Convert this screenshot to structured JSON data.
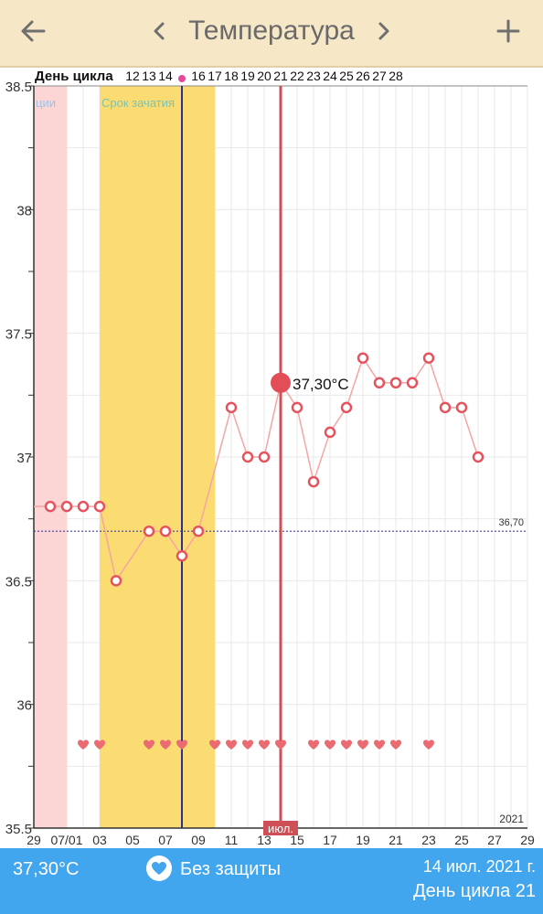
{
  "header": {
    "title": "Температура",
    "back_icon": "arrow-left-icon",
    "prev_icon": "chevron-left-icon",
    "next_icon": "chevron-right-icon",
    "add_icon": "plus-icon"
  },
  "chart_data": {
    "type": "line",
    "cycle_label": "День цикла",
    "cycle_days": [
      {
        "label": "12",
        "x": "2021-07-05"
      },
      {
        "label": "13",
        "x": "2021-07-06"
      },
      {
        "label": "14",
        "x": "2021-07-07"
      },
      {
        "label": "16",
        "x": "2021-07-09"
      },
      {
        "label": "17",
        "x": "2021-07-10"
      },
      {
        "label": "18",
        "x": "2021-07-11"
      },
      {
        "label": "19",
        "x": "2021-07-12"
      },
      {
        "label": "20",
        "x": "2021-07-13"
      },
      {
        "label": "21",
        "x": "2021-07-14"
      },
      {
        "label": "22",
        "x": "2021-07-15"
      },
      {
        "label": "23",
        "x": "2021-07-16"
      },
      {
        "label": "24",
        "x": "2021-07-17"
      },
      {
        "label": "25",
        "x": "2021-07-18"
      },
      {
        "label": "26",
        "x": "2021-07-19"
      },
      {
        "label": "27",
        "x": "2021-07-20"
      },
      {
        "label": "28",
        "x": "2021-07-21"
      }
    ],
    "ovulation_marker_x": "2021-07-08",
    "x_range": [
      "2021-06-29",
      "2021-07-29"
    ],
    "x_ticks": [
      {
        "label": "29",
        "x": "2021-06-29"
      },
      {
        "label": "07/01",
        "x": "2021-07-01"
      },
      {
        "label": "03",
        "x": "2021-07-03"
      },
      {
        "label": "05",
        "x": "2021-07-05"
      },
      {
        "label": "07",
        "x": "2021-07-07"
      },
      {
        "label": "09",
        "x": "2021-07-09"
      },
      {
        "label": "11",
        "x": "2021-07-11"
      },
      {
        "label": "13",
        "x": "2021-07-13"
      },
      {
        "label": "15",
        "x": "2021-07-15"
      },
      {
        "label": "17",
        "x": "2021-07-17"
      },
      {
        "label": "19",
        "x": "2021-07-19"
      },
      {
        "label": "21",
        "x": "2021-07-21"
      },
      {
        "label": "23",
        "x": "2021-07-23"
      },
      {
        "label": "25",
        "x": "2021-07-25"
      },
      {
        "label": "27",
        "x": "2021-07-27"
      },
      {
        "label": "29",
        "x": "2021-07-29"
      }
    ],
    "ylim": [
      35.5,
      38.5
    ],
    "y_ticks": [
      "35.5",
      "36",
      "36.5",
      "37",
      "37.5",
      "38",
      "38.5"
    ],
    "grid": true,
    "year_label": "2021",
    "bands": [
      {
        "label": "ции",
        "start": "2021-06-29",
        "end": "2021-06-30",
        "color": "#fcd5d5",
        "label_color": "#9ec3ea"
      },
      {
        "label": "Срок зачатия",
        "start": "2021-07-03",
        "end": "2021-07-09",
        "color": "#fbdc72",
        "label_color": "#7fc2b0"
      }
    ],
    "coverline": {
      "value": 36.7,
      "label": "36,70",
      "color": "#3e3ea8"
    },
    "selected": {
      "x": "2021-07-14",
      "y": 37.3,
      "label": "37,30°C",
      "month_label": "июл."
    },
    "cursor_line": {
      "x": "2021-07-08",
      "color": "#2e2e8c"
    },
    "series": [
      {
        "color": "#f4a5a5",
        "point_color": "#e5545e",
        "points": [
          {
            "x": "2021-06-30",
            "y": 36.8
          },
          {
            "x": "2021-07-01",
            "y": 36.8
          },
          {
            "x": "2021-07-02",
            "y": 36.8
          },
          {
            "x": "2021-07-03",
            "y": 36.8
          },
          {
            "x": "2021-07-04",
            "y": 36.5
          },
          {
            "x": "2021-07-06",
            "y": 36.7
          },
          {
            "x": "2021-07-07",
            "y": 36.7
          },
          {
            "x": "2021-07-08",
            "y": 36.6
          },
          {
            "x": "2021-07-09",
            "y": 36.7
          },
          {
            "x": "2021-07-11",
            "y": 37.2
          },
          {
            "x": "2021-07-12",
            "y": 37.0
          },
          {
            "x": "2021-07-13",
            "y": 37.0
          },
          {
            "x": "2021-07-14",
            "y": 37.3
          },
          {
            "x": "2021-07-15",
            "y": 37.2
          },
          {
            "x": "2021-07-16",
            "y": 36.9
          },
          {
            "x": "2021-07-17",
            "y": 37.1
          },
          {
            "x": "2021-07-18",
            "y": 37.2
          },
          {
            "x": "2021-07-19",
            "y": 37.4
          },
          {
            "x": "2021-07-20",
            "y": 37.3
          },
          {
            "x": "2021-07-21",
            "y": 37.3
          },
          {
            "x": "2021-07-22",
            "y": 37.3
          },
          {
            "x": "2021-07-23",
            "y": 37.4
          },
          {
            "x": "2021-07-24",
            "y": 37.2
          },
          {
            "x": "2021-07-25",
            "y": 37.2
          },
          {
            "x": "2021-07-26",
            "y": 37.0
          }
        ]
      }
    ],
    "intercourse_days": [
      "2021-07-02",
      "2021-07-03",
      "2021-07-06",
      "2021-07-07",
      "2021-07-08",
      "2021-07-10",
      "2021-07-11",
      "2021-07-12",
      "2021-07-13",
      "2021-07-14",
      "2021-07-16",
      "2021-07-17",
      "2021-07-18",
      "2021-07-19",
      "2021-07-20",
      "2021-07-21",
      "2021-07-23"
    ],
    "colors": {
      "grid": "#e9e9e9",
      "axis": "#333333",
      "heart": "#ea6c72",
      "marker": "#e34a9a"
    }
  },
  "footer": {
    "temp": "37,30°C",
    "protection_icon": "heart-icon",
    "protection": "Без защиты",
    "date": "14 июл. 2021 г.",
    "cycle_day": "День цикла 21"
  }
}
